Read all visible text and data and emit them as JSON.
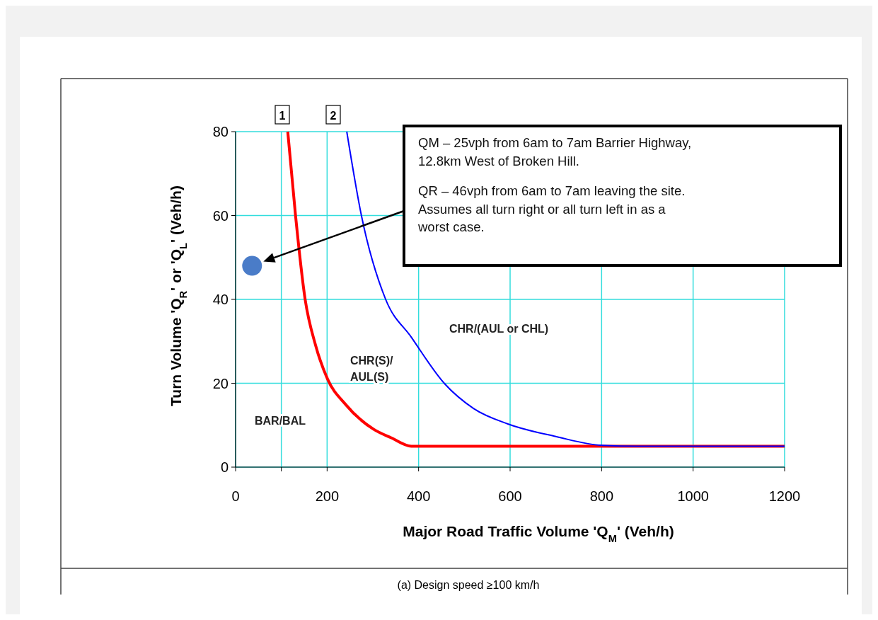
{
  "chart_data": {
    "type": "line",
    "xlabel": "Major Road Traffic Volume 'Q$_{M}$' (Veh/h)",
    "ylabel": "Turn Volume 'Q$_{R}$' or 'Q$_{L}$' (Veh/h)",
    "series": [
      {
        "color": "#ff0000",
        "x": [
          114,
          131,
          152,
          175,
          201,
          240,
          302,
          340,
          384,
          420,
          600,
          800,
          1000,
          1200
        ],
        "values": [
          80,
          60,
          40,
          29,
          21,
          15,
          9,
          7,
          5,
          5,
          5,
          5,
          5,
          5
        ]
      },
      {
        "color": "#0000ff",
        "x": [
          243,
          275,
          328,
          384,
          456,
          520,
          595,
          700,
          800,
          880,
          1000,
          1200
        ],
        "values": [
          80,
          60,
          40,
          31,
          20,
          14,
          10.3,
          7.3,
          5.2,
          5,
          5,
          5
        ]
      },
      {
        "type": "scatter",
        "color": "#4a7cc8",
        "x": [
          36
        ],
        "values": [
          48
        ]
      }
    ],
    "xlim": [
      0,
      1200
    ],
    "ylim": [
      0,
      80
    ],
    "xticks": [
      0,
      {
        "value": 100,
        "label": null
      },
      200,
      400,
      600,
      800,
      1000,
      1200
    ],
    "yticks": [
      0,
      20,
      40,
      60,
      80
    ],
    "grid": true,
    "line_style": "solid",
    "annotations": [
      "1",
      "2",
      "BAR/BAL",
      "CHR(S)/\nAUL(S)",
      "CHR/(AUL or CHL)",
      "QM – 25vph from 6am to 7am Barrier Highway,\n12.8km West of Broken Hill.\nQR – 46vph from 6am to 7am leaving the site.\nAssumes all turn right or all turn left in as a\nworst case.",
      "(a) Design speed ≥100 km/h"
    ]
  }
}
